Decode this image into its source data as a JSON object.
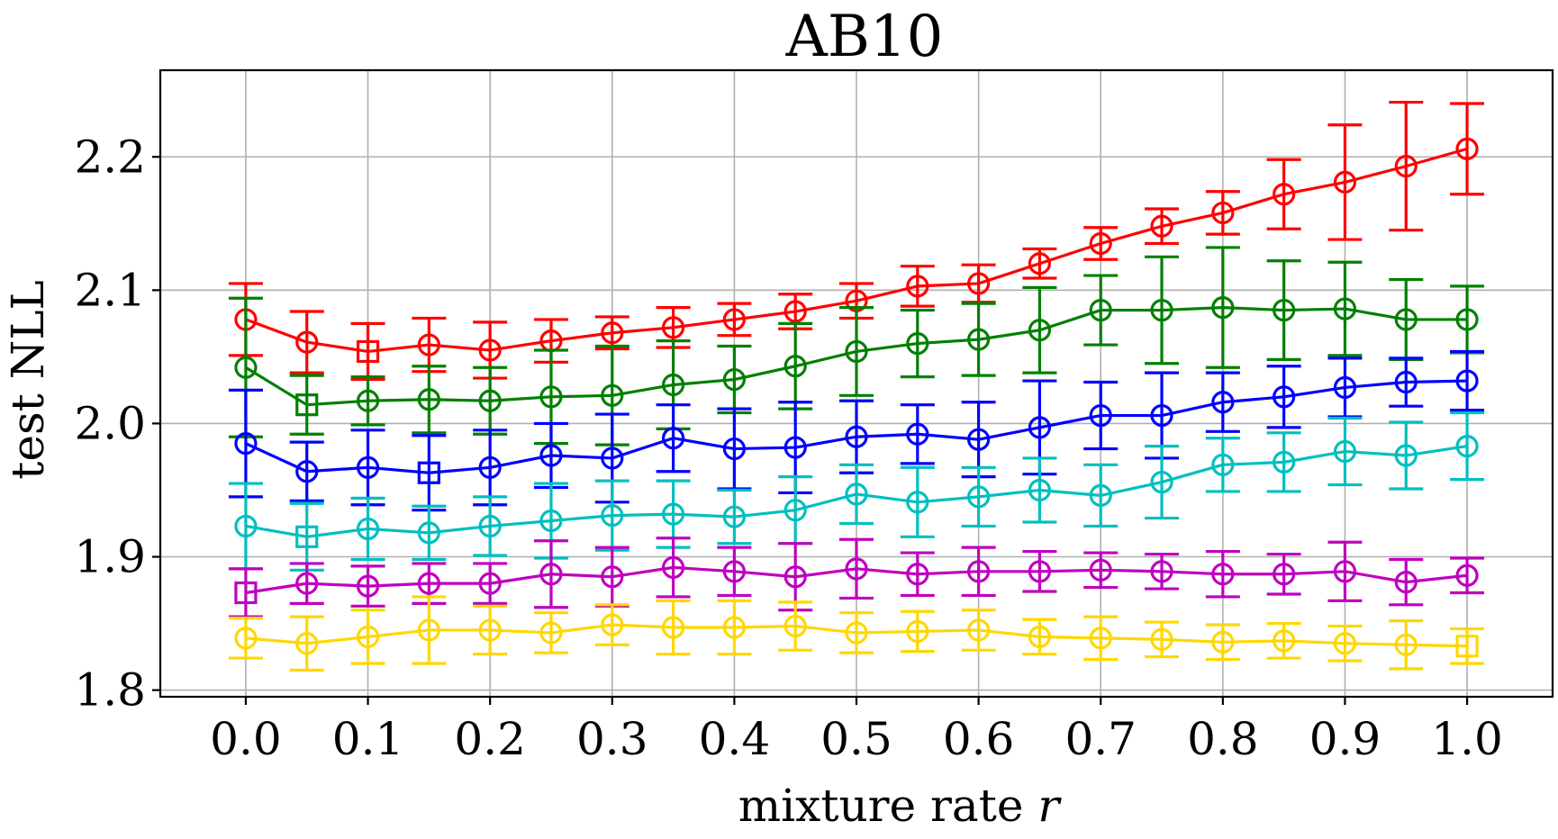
{
  "chart_data": {
    "type": "line",
    "title": "AB10",
    "xlabel": "mixture rate r",
    "xlabel_parts": {
      "text": "mixture rate ",
      "variable": "r"
    },
    "ylabel": "test NLL",
    "xlim": [
      -0.07,
      1.07
    ],
    "ylim": [
      1.795,
      2.265
    ],
    "xticks": [
      0.0,
      0.1,
      0.2,
      0.3,
      0.4,
      0.5,
      0.6,
      0.7,
      0.8,
      0.9,
      1.0
    ],
    "xtick_labels": [
      "0.0",
      "0.1",
      "0.2",
      "0.3",
      "0.4",
      "0.5",
      "0.6",
      "0.7",
      "0.8",
      "0.9",
      "1.0"
    ],
    "yticks": [
      1.8,
      1.9,
      2.0,
      2.1,
      2.2
    ],
    "ytick_labels": [
      "1.8",
      "1.9",
      "2.0",
      "2.1",
      "2.2"
    ],
    "grid": true,
    "x": [
      0.0,
      0.05,
      0.1,
      0.15,
      0.2,
      0.25,
      0.3,
      0.35,
      0.4,
      0.45,
      0.5,
      0.55,
      0.6,
      0.65,
      0.7,
      0.75,
      0.8,
      0.85,
      0.9,
      0.95,
      1.0
    ],
    "series": [
      {
        "name": "red",
        "color": "#ff0000",
        "best_index": 2,
        "values": [
          2.078,
          2.061,
          2.054,
          2.059,
          2.055,
          2.062,
          2.068,
          2.072,
          2.078,
          2.084,
          2.092,
          2.103,
          2.105,
          2.12,
          2.135,
          2.148,
          2.158,
          2.172,
          2.181,
          2.193,
          2.206
        ],
        "errors": [
          0.027,
          0.023,
          0.021,
          0.02,
          0.021,
          0.016,
          0.012,
          0.015,
          0.012,
          0.013,
          0.013,
          0.015,
          0.014,
          0.011,
          0.012,
          0.013,
          0.016,
          0.026,
          0.043,
          0.048,
          0.034
        ]
      },
      {
        "name": "green",
        "color": "#008000",
        "best_index": 1,
        "values": [
          2.042,
          2.014,
          2.017,
          2.018,
          2.017,
          2.02,
          2.021,
          2.029,
          2.033,
          2.043,
          2.054,
          2.06,
          2.063,
          2.07,
          2.085,
          2.085,
          2.087,
          2.085,
          2.086,
          2.078,
          2.078
        ],
        "errors": [
          0.052,
          0.022,
          0.018,
          0.025,
          0.025,
          0.035,
          0.037,
          0.033,
          0.025,
          0.032,
          0.033,
          0.025,
          0.027,
          0.032,
          0.026,
          0.04,
          0.045,
          0.037,
          0.035,
          0.03,
          0.025
        ]
      },
      {
        "name": "blue",
        "color": "#0000ff",
        "best_index": 3,
        "values": [
          1.985,
          1.964,
          1.967,
          1.963,
          1.967,
          1.976,
          1.974,
          1.989,
          1.981,
          1.982,
          1.99,
          1.992,
          1.988,
          1.997,
          2.006,
          2.006,
          2.016,
          2.02,
          2.027,
          2.031,
          2.032
        ],
        "errors": [
          0.04,
          0.022,
          0.028,
          0.028,
          0.028,
          0.024,
          0.033,
          0.025,
          0.03,
          0.034,
          0.027,
          0.022,
          0.028,
          0.035,
          0.025,
          0.032,
          0.022,
          0.023,
          0.022,
          0.018,
          0.022
        ]
      },
      {
        "name": "cyan",
        "color": "#00bfbf",
        "best_index": 1,
        "values": [
          1.923,
          1.915,
          1.921,
          1.918,
          1.923,
          1.927,
          1.931,
          1.932,
          1.93,
          1.935,
          1.947,
          1.941,
          1.945,
          1.95,
          1.946,
          1.956,
          1.969,
          1.971,
          1.979,
          1.976,
          1.983
        ],
        "errors": [
          0.032,
          0.025,
          0.023,
          0.02,
          0.022,
          0.028,
          0.026,
          0.025,
          0.02,
          0.025,
          0.022,
          0.026,
          0.022,
          0.024,
          0.023,
          0.027,
          0.02,
          0.022,
          0.025,
          0.025,
          0.025
        ]
      },
      {
        "name": "magenta",
        "color": "#bf00bf",
        "best_index": 0,
        "values": [
          1.873,
          1.88,
          1.878,
          1.88,
          1.88,
          1.887,
          1.885,
          1.892,
          1.889,
          1.885,
          1.891,
          1.887,
          1.889,
          1.889,
          1.89,
          1.889,
          1.887,
          1.887,
          1.889,
          1.881,
          1.886
        ],
        "errors": [
          0.018,
          0.015,
          0.015,
          0.015,
          0.015,
          0.025,
          0.022,
          0.022,
          0.018,
          0.025,
          0.022,
          0.016,
          0.018,
          0.015,
          0.013,
          0.013,
          0.017,
          0.015,
          0.022,
          0.017,
          0.013
        ]
      },
      {
        "name": "yellow",
        "color": "#ffd700",
        "best_index": 20,
        "values": [
          1.839,
          1.835,
          1.84,
          1.845,
          1.845,
          1.843,
          1.849,
          1.847,
          1.847,
          1.848,
          1.843,
          1.844,
          1.845,
          1.84,
          1.839,
          1.838,
          1.836,
          1.837,
          1.835,
          1.834,
          1.833
        ],
        "errors": [
          0.015,
          0.02,
          0.02,
          0.025,
          0.018,
          0.015,
          0.015,
          0.02,
          0.02,
          0.018,
          0.015,
          0.015,
          0.015,
          0.013,
          0.016,
          0.013,
          0.013,
          0.013,
          0.013,
          0.018,
          0.013
        ]
      }
    ]
  }
}
